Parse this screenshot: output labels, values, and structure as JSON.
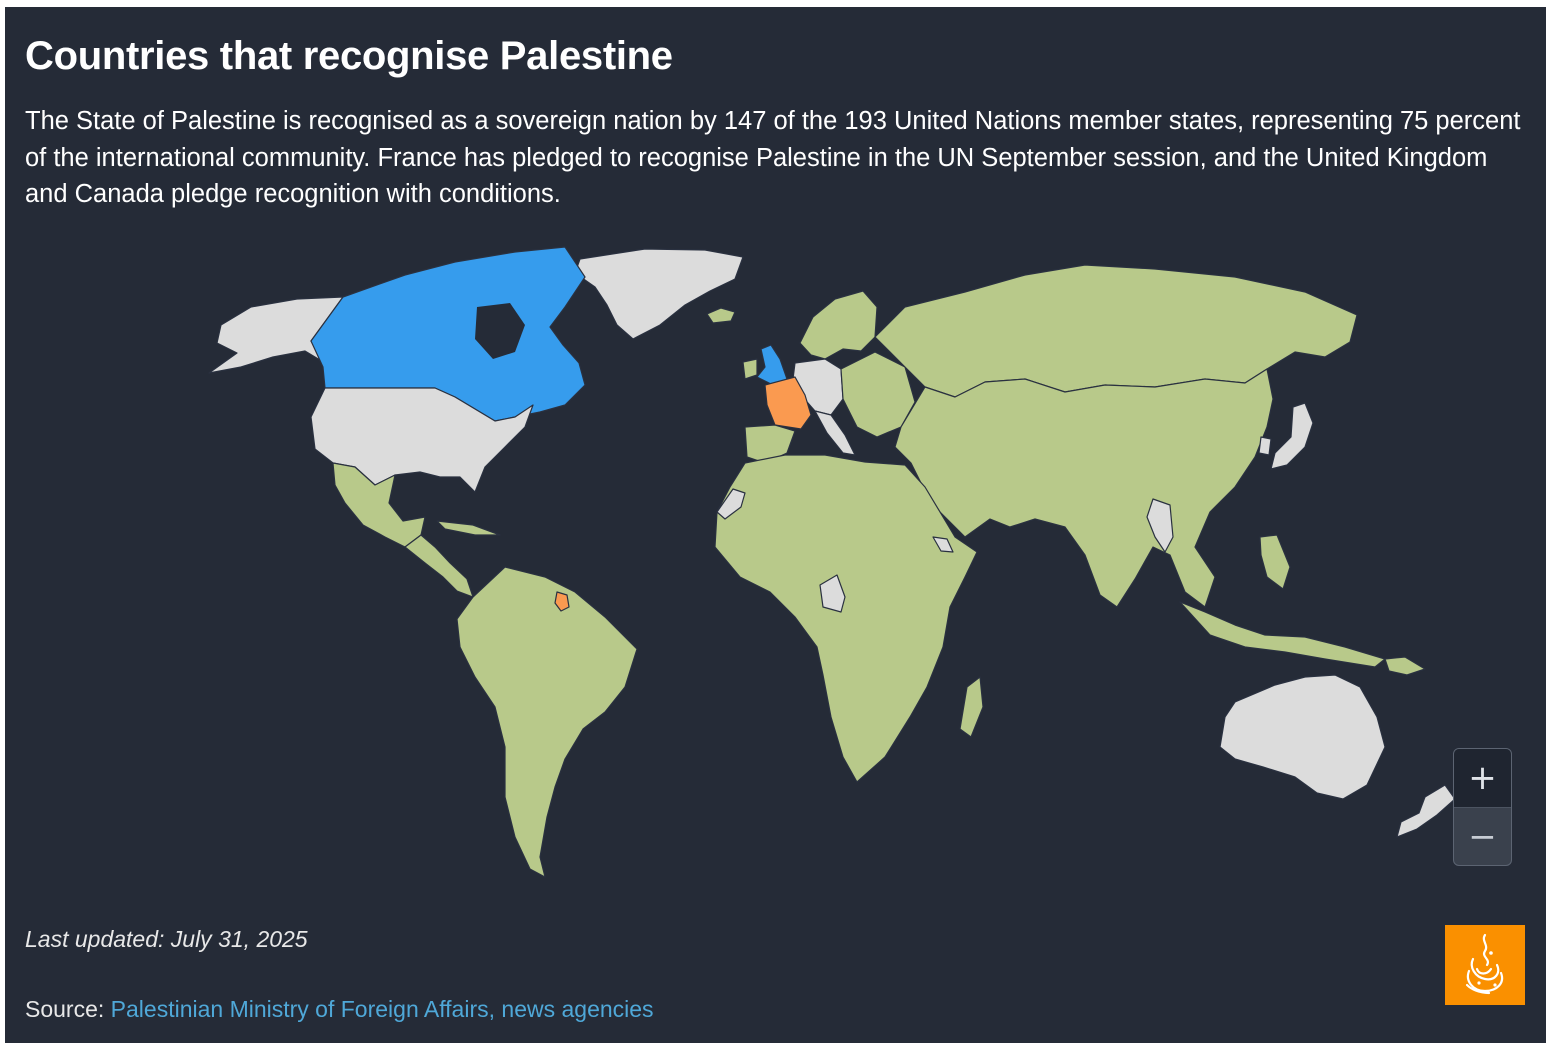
{
  "title": "Countries that recognise Palestine",
  "description": "The State of Palestine is recognised as a sovereign nation by 147 of the 193 United Nations member states, representing 75 percent of the international community. France has pledged to recognise Palestine in the UN September session, and the United Kingdom and Canada pledge recognition with conditions.",
  "map": {
    "colors": {
      "background": "#252b37",
      "recognise": "#b8c98a",
      "not_recognise": "#dcdcdc",
      "pledged": "#fa9a50",
      "conditional": "#369ced",
      "border": "#2a3140"
    },
    "groups": {
      "pledged": [
        "France"
      ],
      "conditional": [
        "United Kingdom",
        "Canada"
      ]
    }
  },
  "zoom": {
    "in_label": "+",
    "out_label": "−"
  },
  "footer": {
    "updated": "Last updated: July 31, 2025",
    "source_label": "Source:",
    "source_link": "Palestinian Ministry of Foreign Affairs, news agencies"
  },
  "logo": {
    "icon": "al-jazeera-logo-icon",
    "color": "#fa9000"
  }
}
